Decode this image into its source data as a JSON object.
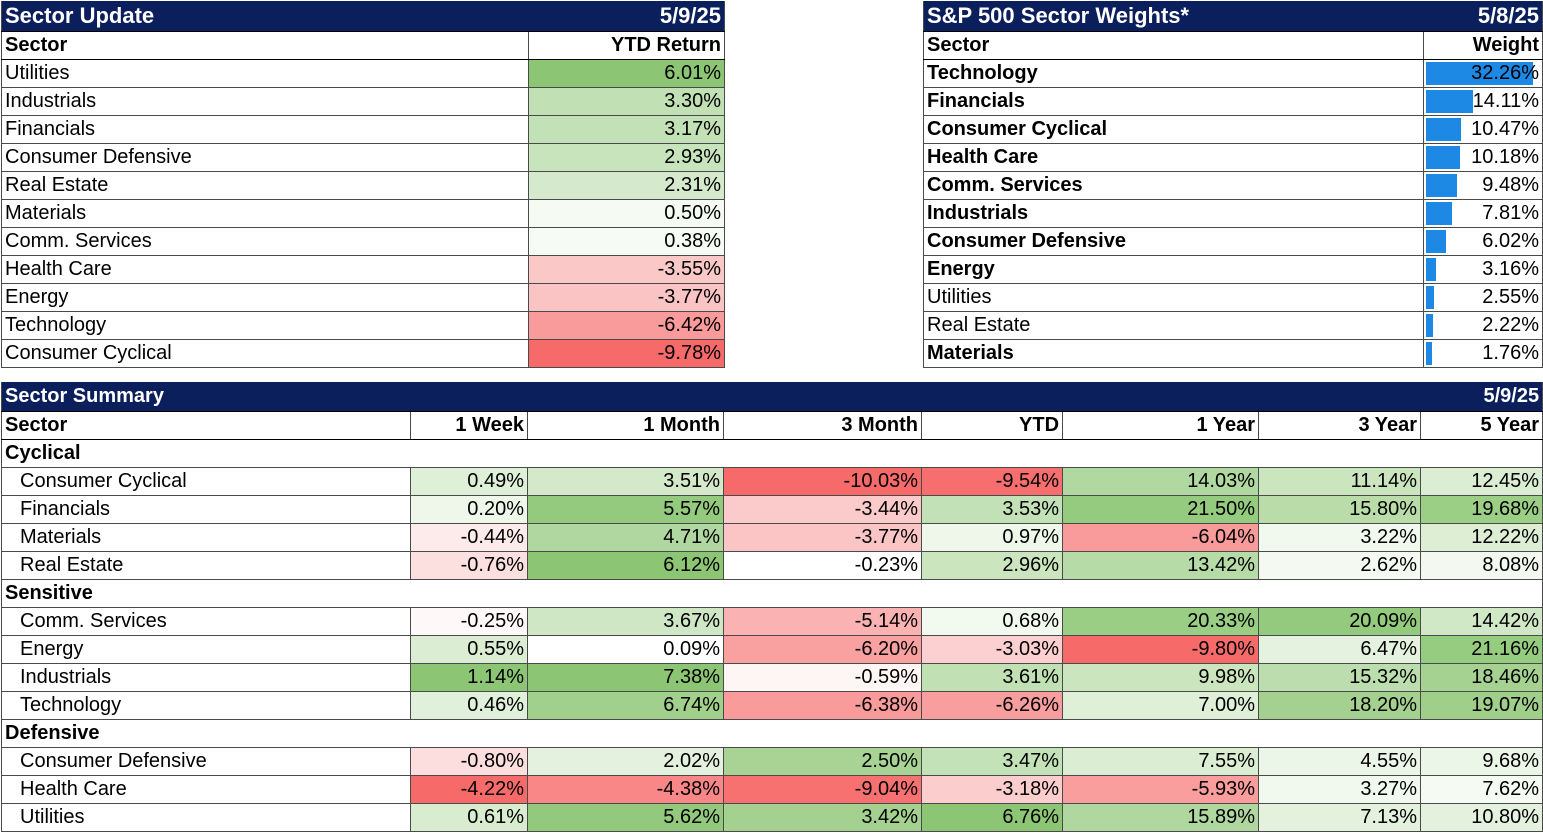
{
  "sector_update": {
    "title": "Sector Update",
    "date": "5/9/25",
    "col_sector": "Sector",
    "col_return": "YTD Return",
    "rows": [
      {
        "sector": "Utilities",
        "value": "6.01%",
        "color": "#8cc674"
      },
      {
        "sector": "Industrials",
        "value": "3.30%",
        "color": "#c1e0b3"
      },
      {
        "sector": "Financials",
        "value": "3.17%",
        "color": "#c3e1b6"
      },
      {
        "sector": "Consumer Defensive",
        "value": "2.93%",
        "color": "#c8e4bc"
      },
      {
        "sector": "Real Estate",
        "value": "2.31%",
        "color": "#d5eacc"
      },
      {
        "sector": "Materials",
        "value": "0.50%",
        "color": "#f5faf3"
      },
      {
        "sector": "Comm. Services",
        "value": "0.38%",
        "color": "#f7fbf6"
      },
      {
        "sector": "Health Care",
        "value": "-3.55%",
        "color": "#fbc8c8"
      },
      {
        "sector": "Energy",
        "value": "-3.77%",
        "color": "#fbc4c4"
      },
      {
        "sector": "Technology",
        "value": "-6.42%",
        "color": "#f99b9b"
      },
      {
        "sector": "Consumer Cyclical",
        "value": "-9.78%",
        "color": "#f76a6a"
      }
    ]
  },
  "sector_weights": {
    "title": "S&P 500 Sector Weights*",
    "date": "5/8/25",
    "col_sector": "Sector",
    "col_weight": "Weight",
    "bar_color": "#1e88e5",
    "rows": [
      {
        "sector": "Technology",
        "value": "32.26%",
        "weight": 32.26,
        "bold": true
      },
      {
        "sector": "Financials",
        "value": "14.11%",
        "weight": 14.11,
        "bold": true
      },
      {
        "sector": "Consumer Cyclical",
        "value": "10.47%",
        "weight": 10.47,
        "bold": true
      },
      {
        "sector": "Health Care",
        "value": "10.18%",
        "weight": 10.18,
        "bold": true
      },
      {
        "sector": "Comm. Services",
        "value": "9.48%",
        "weight": 9.48,
        "bold": true
      },
      {
        "sector": "Industrials",
        "value": "7.81%",
        "weight": 7.81,
        "bold": true
      },
      {
        "sector": "Consumer Defensive",
        "value": "6.02%",
        "weight": 6.02,
        "bold": true
      },
      {
        "sector": "Energy",
        "value": "3.16%",
        "weight": 3.16,
        "bold": true
      },
      {
        "sector": "Utilities",
        "value": "2.55%",
        "weight": 2.55,
        "bold": false
      },
      {
        "sector": "Real Estate",
        "value": "2.22%",
        "weight": 2.22,
        "bold": false
      },
      {
        "sector": "Materials",
        "value": "1.76%",
        "weight": 1.76,
        "bold": true
      }
    ]
  },
  "sector_summary": {
    "title": "Sector Summary",
    "date": "5/9/25",
    "columns": [
      "Sector",
      "1 Week",
      "1 Month",
      "3 Month",
      "YTD",
      "1 Year",
      "3 Year",
      "5 Year"
    ],
    "groups": [
      {
        "name": "Cyclical",
        "rows": [
          {
            "sector": "Consumer Cyclical",
            "cells": [
              {
                "v": "0.49%",
                "c": "#dff0d8"
              },
              {
                "v": "3.51%",
                "c": "#d3e9c9"
              },
              {
                "v": "-10.03%",
                "c": "#f76a6a"
              },
              {
                "v": "-9.54%",
                "c": "#f76e6e"
              },
              {
                "v": "14.03%",
                "c": "#b2d8a1"
              },
              {
                "v": "11.14%",
                "c": "#cbe5bf"
              },
              {
                "v": "12.45%",
                "c": "#dbedd3"
              }
            ]
          },
          {
            "sector": "Financials",
            "cells": [
              {
                "v": "0.20%",
                "c": "#eef7ea"
              },
              {
                "v": "5.57%",
                "c": "#94ca7d"
              },
              {
                "v": "-3.44%",
                "c": "#fbcaca"
              },
              {
                "v": "3.53%",
                "c": "#c3e1b6"
              },
              {
                "v": "21.50%",
                "c": "#95cb7e"
              },
              {
                "v": "15.80%",
                "c": "#b9dca9"
              },
              {
                "v": "19.68%",
                "c": "#9ccf86"
              }
            ]
          },
          {
            "sector": "Materials",
            "cells": [
              {
                "v": "-0.44%",
                "c": "#fdebeb"
              },
              {
                "v": "4.71%",
                "c": "#b0d79f"
              },
              {
                "v": "-3.77%",
                "c": "#fbc5c5"
              },
              {
                "v": "0.97%",
                "c": "#eef7ea"
              },
              {
                "v": "-6.04%",
                "c": "#f99b9b"
              },
              {
                "v": "3.22%",
                "c": "#f1f8ee"
              },
              {
                "v": "12.22%",
                "c": "#ddeed5"
              }
            ]
          },
          {
            "sector": "Real Estate",
            "cells": [
              {
                "v": "-0.76%",
                "c": "#fce0e0"
              },
              {
                "v": "6.12%",
                "c": "#8cc674"
              },
              {
                "v": "-0.23%",
                "c": "#ffffff"
              },
              {
                "v": "2.96%",
                "c": "#cbe5bf"
              },
              {
                "v": "13.42%",
                "c": "#b7dba7"
              },
              {
                "v": "2.62%",
                "c": "#f4faf2"
              },
              {
                "v": "8.08%",
                "c": "#f3f9f0"
              }
            ]
          }
        ]
      },
      {
        "name": "Sensitive",
        "rows": [
          {
            "sector": "Comm. Services",
            "cells": [
              {
                "v": "-0.25%",
                "c": "#fff8f8"
              },
              {
                "v": "3.67%",
                "c": "#cfe7c4"
              },
              {
                "v": "-5.14%",
                "c": "#fab2b2"
              },
              {
                "v": "0.68%",
                "c": "#f2f9ef"
              },
              {
                "v": "20.33%",
                "c": "#9ace84"
              },
              {
                "v": "20.09%",
                "c": "#94ca7d"
              },
              {
                "v": "14.42%",
                "c": "#d1e8c7"
              }
            ]
          },
          {
            "sector": "Energy",
            "cells": [
              {
                "v": "0.55%",
                "c": "#dbedd3"
              },
              {
                "v": "0.09%",
                "c": "#ffffff"
              },
              {
                "v": "-6.20%",
                "c": "#f9a0a0"
              },
              {
                "v": "-3.03%",
                "c": "#fcd0d0"
              },
              {
                "v": "-9.80%",
                "c": "#f76a6a"
              },
              {
                "v": "6.47%",
                "c": "#e5f2df"
              },
              {
                "v": "21.16%",
                "c": "#96cc7f"
              }
            ]
          },
          {
            "sector": "Industrials",
            "cells": [
              {
                "v": "1.14%",
                "c": "#8cc674"
              },
              {
                "v": "7.38%",
                "c": "#8cc674"
              },
              {
                "v": "-0.59%",
                "c": "#fef5f5"
              },
              {
                "v": "3.61%",
                "c": "#c1e0b3"
              },
              {
                "v": "9.98%",
                "c": "#cbe5bf"
              },
              {
                "v": "15.32%",
                "c": "#bcddad"
              },
              {
                "v": "18.46%",
                "c": "#a6d291"
              }
            ]
          },
          {
            "sector": "Technology",
            "cells": [
              {
                "v": "0.46%",
                "c": "#e1f0da"
              },
              {
                "v": "6.74%",
                "c": "#a1d08c"
              },
              {
                "v": "-6.38%",
                "c": "#f99b9b"
              },
              {
                "v": "-6.26%",
                "c": "#f99e9e"
              },
              {
                "v": "7.00%",
                "c": "#dfefd8"
              },
              {
                "v": "18.20%",
                "c": "#a4d18f"
              },
              {
                "v": "19.07%",
                "c": "#a0cf8a"
              }
            ]
          }
        ]
      },
      {
        "name": "Defensive",
        "rows": [
          {
            "sector": "Consumer Defensive",
            "cells": [
              {
                "v": "-0.80%",
                "c": "#fcdede"
              },
              {
                "v": "2.02%",
                "c": "#e4f1de"
              },
              {
                "v": "2.50%",
                "c": "#a8d394"
              },
              {
                "v": "3.47%",
                "c": "#c4e2b7"
              },
              {
                "v": "7.55%",
                "c": "#dbedd3"
              },
              {
                "v": "4.55%",
                "c": "#ecf6e8"
              },
              {
                "v": "9.68%",
                "c": "#ecf6e8"
              }
            ]
          },
          {
            "sector": "Health Care",
            "cells": [
              {
                "v": "-4.22%",
                "c": "#f76a6a"
              },
              {
                "v": "-4.38%",
                "c": "#f98787"
              },
              {
                "v": "-9.04%",
                "c": "#f77171"
              },
              {
                "v": "-3.18%",
                "c": "#fbcdcd"
              },
              {
                "v": "-5.93%",
                "c": "#fa9d9d"
              },
              {
                "v": "3.27%",
                "c": "#f1f8ee"
              },
              {
                "v": "7.62%",
                "c": "#f5faf3"
              }
            ]
          },
          {
            "sector": "Utilities",
            "cells": [
              {
                "v": "0.61%",
                "c": "#d8ecd0"
              },
              {
                "v": "5.62%",
                "c": "#93c97c"
              },
              {
                "v": "3.42%",
                "c": "#a4d18f"
              },
              {
                "v": "6.76%",
                "c": "#8cc674"
              },
              {
                "v": "15.89%",
                "c": "#b0d79f"
              },
              {
                "v": "7.13%",
                "c": "#e3f1dd"
              },
              {
                "v": "10.80%",
                "c": "#e4f1de"
              }
            ]
          }
        ]
      }
    ]
  }
}
